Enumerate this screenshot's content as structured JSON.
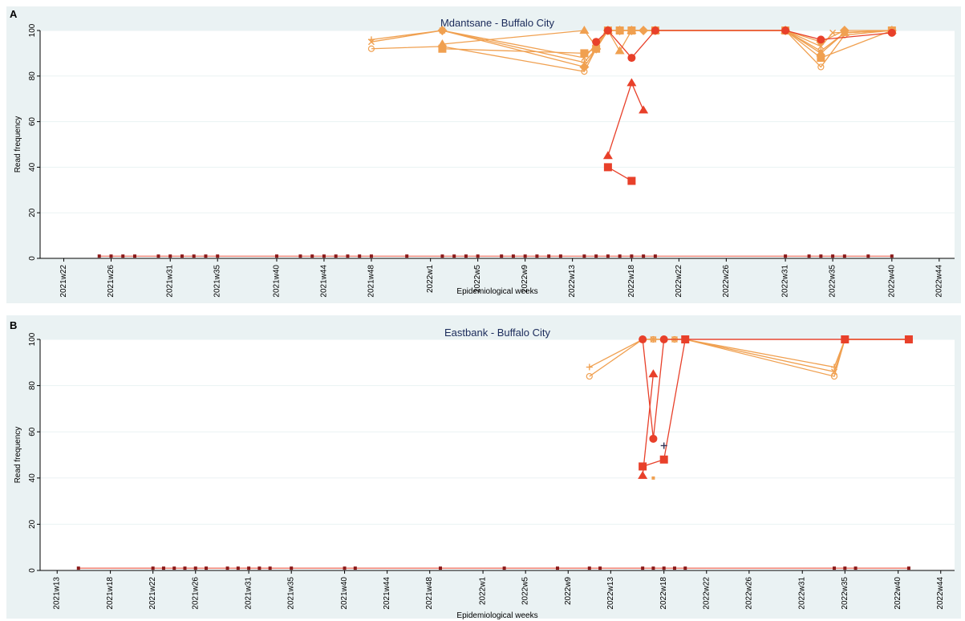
{
  "chart_data": [
    {
      "type": "line",
      "panel_label": "A",
      "title": "Mdantsane - Buffalo City",
      "xlabel": "Epidemiological weeks",
      "ylabel": "Read frequency",
      "ylim": [
        0,
        100
      ],
      "yticks": [
        0,
        20,
        40,
        60,
        80,
        100
      ],
      "xticks": [
        "2021w22",
        "2021w26",
        "2021w31",
        "2021w35",
        "2021w40",
        "2021w44",
        "2021w48",
        "2022w1",
        "2022w5",
        "2022w9",
        "2022w13",
        "2022w18",
        "2022w22",
        "2022w26",
        "2022w31",
        "2022w35",
        "2022w40",
        "2022w44"
      ],
      "grid": true,
      "baseline": {
        "value": 1,
        "color": "#8b1a1a",
        "x": [
          "2021w25",
          "2021w26",
          "2021w27",
          "2021w28",
          "2021w30",
          "2021w31",
          "2021w32",
          "2021w33",
          "2021w34",
          "2021w35",
          "2021w40",
          "2021w42",
          "2021w43",
          "2021w44",
          "2021w45",
          "2021w46",
          "2021w47",
          "2021w48",
          "2021w51",
          "2022w2",
          "2022w3",
          "2022w4",
          "2022w5",
          "2022w7",
          "2022w8",
          "2022w9",
          "2022w10",
          "2022w11",
          "2022w12",
          "2022w14",
          "2022w15",
          "2022w16",
          "2022w17",
          "2022w18",
          "2022w19",
          "2022w20",
          "2022w31",
          "2022w33",
          "2022w34",
          "2022w35",
          "2022w36",
          "2022w38",
          "2022w40"
        ]
      },
      "series": [
        {
          "marker": "circle-open",
          "color": "#f0a050",
          "x": [
            "2021w48",
            "2022w2",
            "2022w14",
            "2022w15",
            "2022w16",
            "2022w17",
            "2022w18",
            "2022w19",
            "2022w20",
            "2022w31",
            "2022w34",
            "2022w36",
            "2022w40"
          ],
          "y": [
            92,
            93,
            82,
            92,
            100,
            100,
            100,
            100,
            100,
            100,
            84,
            98,
            100
          ]
        },
        {
          "marker": "plus",
          "color": "#f0a050",
          "x": [
            "2021w48",
            "2022w2",
            "2022w14",
            "2022w15",
            "2022w16",
            "2022w17",
            "2022w18",
            "2022w19",
            "2022w20",
            "2022w31",
            "2022w34",
            "2022w36",
            "2022w40"
          ],
          "y": [
            96,
            100,
            86,
            92,
            100,
            100,
            100,
            100,
            100,
            100,
            91,
            99,
            100
          ]
        },
        {
          "marker": "x",
          "color": "#f0a050",
          "x": [
            "2021w48",
            "2022w2",
            "2022w14",
            "2022w15",
            "2022w16",
            "2022w17",
            "2022w18",
            "2022w20",
            "2022w31",
            "2022w34",
            "2022w35",
            "2022w40"
          ],
          "y": [
            95,
            100,
            88,
            94,
            100,
            100,
            100,
            100,
            100,
            93,
            99,
            100
          ]
        },
        {
          "marker": "triangle",
          "color": "#f0a050",
          "x": [
            "2022w2",
            "2022w14",
            "2022w15",
            "2022w16",
            "2022w17",
            "2022w18",
            "2022w20",
            "2022w31",
            "2022w34",
            "2022w36",
            "2022w40"
          ],
          "y": [
            94,
            100,
            93,
            100,
            91,
            100,
            100,
            100,
            90,
            99,
            100
          ]
        },
        {
          "marker": "square",
          "color": "#f0a050",
          "x": [
            "2022w2",
            "2022w14",
            "2022w15",
            "2022w16",
            "2022w17",
            "2022w18",
            "2022w20",
            "2022w31",
            "2022w34",
            "2022w40"
          ],
          "y": [
            92,
            90,
            92,
            100,
            100,
            100,
            100,
            100,
            88,
            100
          ]
        },
        {
          "marker": "diamond",
          "color": "#f0a050",
          "x": [
            "2022w2",
            "2022w14",
            "2022w15",
            "2022w16",
            "2022w17",
            "2022w18",
            "2022w19",
            "2022w20",
            "2022w31",
            "2022w34",
            "2022w36",
            "2022w40"
          ],
          "y": [
            100,
            84,
            92,
            100,
            100,
            100,
            100,
            100,
            100,
            95,
            100,
            100
          ]
        },
        {
          "marker": "circle",
          "color": "#e8402a",
          "x": [
            "2022w15",
            "2022w16",
            "2022w18",
            "2022w20",
            "2022w31",
            "2022w34",
            "2022w40"
          ],
          "y": [
            95,
            100,
            88,
            100,
            100,
            96,
            99
          ]
        },
        {
          "marker": "triangle",
          "color": "#e8402a",
          "x": [
            "2022w16",
            "2022w18",
            "2022w19"
          ],
          "y": [
            45,
            77,
            65
          ]
        },
        {
          "marker": "square",
          "color": "#e8402a",
          "x": [
            "2022w16",
            "2022w18"
          ],
          "y": [
            40,
            34
          ]
        }
      ]
    },
    {
      "type": "line",
      "panel_label": "B",
      "title": "Eastbank - Buffalo City",
      "xlabel": "Epidemiological weeks",
      "ylabel": "Read frequency",
      "ylim": [
        0,
        100
      ],
      "yticks": [
        0,
        20,
        40,
        60,
        80,
        100
      ],
      "xticks": [
        "2021w13",
        "2021w18",
        "2021w22",
        "2021w26",
        "2021w31",
        "2021w35",
        "2021w40",
        "2021w44",
        "2021w48",
        "2022w1",
        "2022w5",
        "2022w9",
        "2022w13",
        "2022w18",
        "2022w22",
        "2022w26",
        "2022w31",
        "2022w35",
        "2022w40",
        "2022w44"
      ],
      "grid": true,
      "baseline": {
        "value": 1,
        "color": "#8b1a1a",
        "x": [
          "2021w15",
          "2021w22",
          "2021w23",
          "2021w24",
          "2021w25",
          "2021w26",
          "2021w27",
          "2021w29",
          "2021w30",
          "2021w31",
          "2021w32",
          "2021w33",
          "2021w35",
          "2021w40",
          "2021w41",
          "2021w49",
          "2022w3",
          "2022w8",
          "2022w11",
          "2022w12",
          "2022w16",
          "2022w17",
          "2022w18",
          "2022w19",
          "2022w20",
          "2022w34",
          "2022w35",
          "2022w36",
          "2022w41"
        ]
      },
      "series": [
        {
          "marker": "circle-open",
          "color": "#f0a050",
          "x": [
            "2022w11",
            "2022w16",
            "2022w17",
            "2022w18",
            "2022w19",
            "2022w20",
            "2022w34",
            "2022w35",
            "2022w41"
          ],
          "y": [
            84,
            100,
            100,
            100,
            100,
            100,
            84,
            100,
            100
          ]
        },
        {
          "marker": "plus",
          "color": "#f0a050",
          "x": [
            "2022w11",
            "2022w16",
            "2022w17",
            "2022w18",
            "2022w19",
            "2022w20",
            "2022w34",
            "2022w35",
            "2022w41"
          ],
          "y": [
            88,
            100,
            100,
            100,
            100,
            100,
            88,
            100,
            100
          ]
        },
        {
          "marker": "x",
          "color": "#f0a050",
          "x": [
            "2022w16",
            "2022w17",
            "2022w18",
            "2022w19",
            "2022w20",
            "2022w34",
            "2022w35",
            "2022w41"
          ],
          "y": [
            100,
            100,
            100,
            100,
            100,
            86,
            100,
            100
          ]
        },
        {
          "marker": "circle",
          "color": "#e8402a",
          "x": [
            "2022w16",
            "2022w17",
            "2022w18",
            "2022w20",
            "2022w35",
            "2022w41"
          ],
          "y": [
            100,
            57,
            100,
            100,
            100,
            100
          ]
        },
        {
          "marker": "triangle",
          "color": "#e8402a",
          "x": [
            "2022w16",
            "2022w17"
          ],
          "y": [
            41,
            85
          ]
        },
        {
          "marker": "square",
          "color": "#e8402a",
          "x": [
            "2022w16",
            "2022w18",
            "2022w20",
            "2022w35",
            "2022w41"
          ],
          "y": [
            45,
            48,
            100,
            100,
            100
          ]
        },
        {
          "marker": "plus",
          "color": "#333355",
          "x": [
            "2022w18"
          ],
          "y": [
            54
          ]
        },
        {
          "marker": "square-small",
          "color": "#f0a050",
          "x": [
            "2022w17"
          ],
          "y": [
            40
          ]
        }
      ]
    }
  ]
}
